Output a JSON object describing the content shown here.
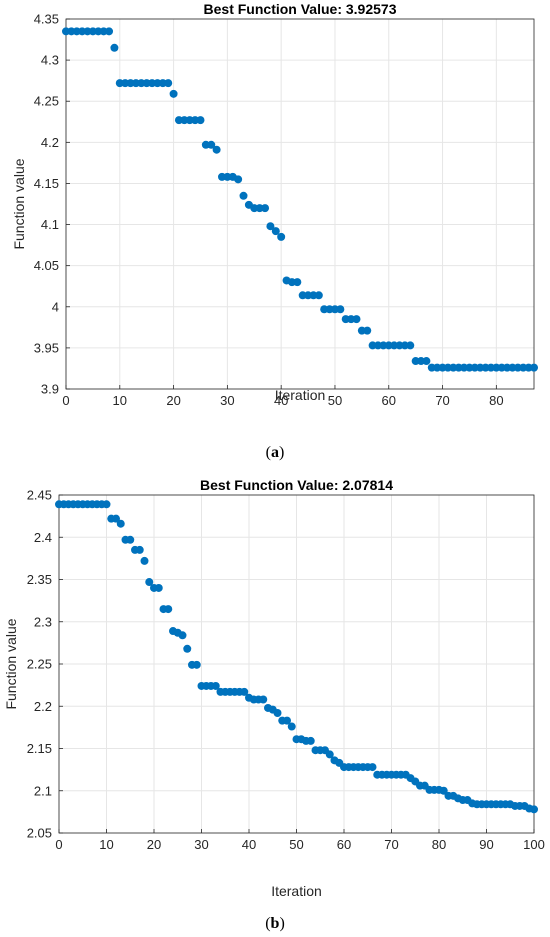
{
  "chart_data": [
    {
      "type": "scatter",
      "title": "Best Function Value: 3.92573",
      "xlabel": "Iteration",
      "ylabel": "Function value",
      "caption_letter": "a",
      "xlim": [
        0,
        87
      ],
      "ylim": [
        3.9,
        4.35
      ],
      "xticks": [
        "0",
        "10",
        "20",
        "30",
        "40",
        "50",
        "60",
        "70",
        "80"
      ],
      "yticks": [
        "3.9",
        "3.95",
        "4",
        "4.05",
        "4.1",
        "4.15",
        "4.2",
        "4.25",
        "4.3",
        "4.35"
      ],
      "grid": true,
      "marker_color": "#0072BD",
      "x": [
        0,
        1,
        2,
        3,
        4,
        5,
        6,
        7,
        8,
        9,
        10,
        11,
        12,
        13,
        14,
        15,
        16,
        17,
        18,
        19,
        20,
        21,
        22,
        23,
        24,
        25,
        26,
        27,
        28,
        29,
        30,
        31,
        32,
        33,
        34,
        35,
        36,
        37,
        38,
        39,
        40,
        41,
        42,
        43,
        44,
        45,
        46,
        47,
        48,
        49,
        50,
        51,
        52,
        53,
        54,
        55,
        56,
        57,
        58,
        59,
        60,
        61,
        62,
        63,
        64,
        65,
        66,
        67,
        68,
        69,
        70,
        71,
        72,
        73,
        74,
        75,
        76,
        77,
        78,
        79,
        80,
        81,
        82,
        83,
        84,
        85,
        86,
        87
      ],
      "y": [
        4.335,
        4.335,
        4.335,
        4.335,
        4.335,
        4.335,
        4.335,
        4.335,
        4.335,
        4.315,
        4.272,
        4.272,
        4.272,
        4.272,
        4.272,
        4.272,
        4.272,
        4.272,
        4.272,
        4.272,
        4.259,
        4.227,
        4.227,
        4.227,
        4.227,
        4.227,
        4.197,
        4.197,
        4.191,
        4.158,
        4.158,
        4.158,
        4.155,
        4.135,
        4.124,
        4.12,
        4.12,
        4.12,
        4.098,
        4.092,
        4.085,
        4.032,
        4.03,
        4.03,
        4.014,
        4.014,
        4.014,
        4.014,
        3.997,
        3.997,
        3.997,
        3.997,
        3.985,
        3.985,
        3.985,
        3.971,
        3.971,
        3.953,
        3.953,
        3.953,
        3.953,
        3.953,
        3.953,
        3.953,
        3.953,
        3.934,
        3.934,
        3.934,
        3.926,
        3.926,
        3.926,
        3.926,
        3.926,
        3.926,
        3.926,
        3.926,
        3.926,
        3.926,
        3.926,
        3.926,
        3.926,
        3.926,
        3.926,
        3.926,
        3.926,
        3.926,
        3.926,
        3.926
      ]
    },
    {
      "type": "scatter",
      "title": "Best Function Value: 2.07814",
      "xlabel": "Iteration",
      "ylabel": "Function value",
      "caption_letter": "b",
      "xlim": [
        0,
        100
      ],
      "ylim": [
        2.05,
        2.45
      ],
      "xticks": [
        "0",
        "10",
        "20",
        "30",
        "40",
        "50",
        "60",
        "70",
        "80",
        "90",
        "100"
      ],
      "yticks": [
        "2.05",
        "2.1",
        "2.15",
        "2.2",
        "2.25",
        "2.3",
        "2.35",
        "2.4",
        "2.45"
      ],
      "grid": true,
      "marker_color": "#0072BD",
      "x": [
        0,
        1,
        2,
        3,
        4,
        5,
        6,
        7,
        8,
        9,
        10,
        11,
        12,
        13,
        14,
        15,
        16,
        17,
        18,
        19,
        20,
        21,
        22,
        23,
        24,
        25,
        26,
        27,
        28,
        29,
        30,
        31,
        32,
        33,
        34,
        35,
        36,
        37,
        38,
        39,
        40,
        41,
        42,
        43,
        44,
        45,
        46,
        47,
        48,
        49,
        50,
        51,
        52,
        53,
        54,
        55,
        56,
        57,
        58,
        59,
        60,
        61,
        62,
        63,
        64,
        65,
        66,
        67,
        68,
        69,
        70,
        71,
        72,
        73,
        74,
        75,
        76,
        77,
        78,
        79,
        80,
        81,
        82,
        83,
        84,
        85,
        86,
        87,
        88,
        89,
        90,
        91,
        92,
        93,
        94,
        95,
        96,
        97,
        98,
        99,
        100
      ],
      "y": [
        2.439,
        2.439,
        2.439,
        2.439,
        2.439,
        2.439,
        2.439,
        2.439,
        2.439,
        2.439,
        2.439,
        2.422,
        2.422,
        2.416,
        2.397,
        2.397,
        2.385,
        2.385,
        2.372,
        2.347,
        2.34,
        2.34,
        2.315,
        2.315,
        2.289,
        2.287,
        2.284,
        2.268,
        2.249,
        2.249,
        2.224,
        2.224,
        2.224,
        2.224,
        2.217,
        2.217,
        2.217,
        2.217,
        2.217,
        2.217,
        2.21,
        2.208,
        2.208,
        2.208,
        2.198,
        2.196,
        2.192,
        2.183,
        2.183,
        2.176,
        2.161,
        2.161,
        2.159,
        2.159,
        2.148,
        2.148,
        2.148,
        2.143,
        2.136,
        2.133,
        2.128,
        2.128,
        2.128,
        2.128,
        2.128,
        2.128,
        2.128,
        2.119,
        2.119,
        2.119,
        2.119,
        2.119,
        2.119,
        2.119,
        2.115,
        2.111,
        2.106,
        2.106,
        2.101,
        2.101,
        2.101,
        2.1,
        2.094,
        2.094,
        2.091,
        2.089,
        2.089,
        2.085,
        2.084,
        2.084,
        2.084,
        2.084,
        2.084,
        2.084,
        2.084,
        2.084,
        2.082,
        2.082,
        2.082,
        2.079,
        2.078
      ]
    }
  ]
}
